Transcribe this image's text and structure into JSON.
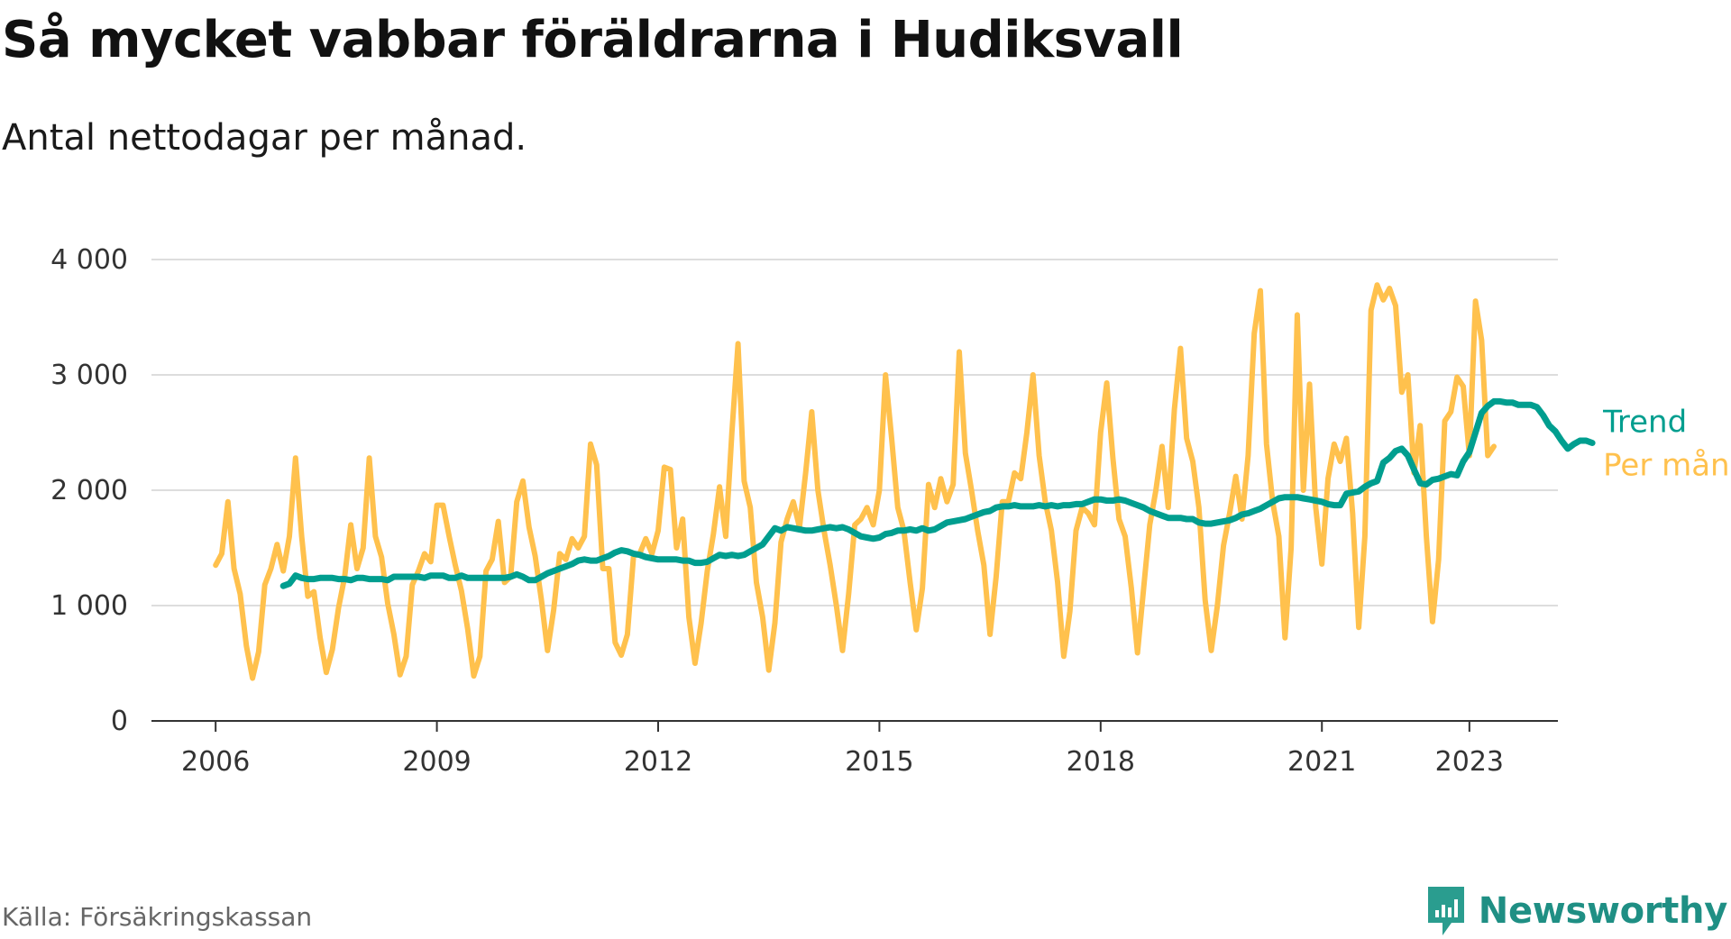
{
  "title": "Så mycket vabbar föräldrarna i Hudiksvall",
  "subtitle": "Antal nettodagar per månad.",
  "source": "Källa: Försäkringskassan",
  "brand": "Newsworthy",
  "colors": {
    "trend": "#009e8f",
    "monthly": "#ffc14d",
    "grid": "#dddddd",
    "axis": "#333333",
    "brand": "#1f8f84"
  },
  "chart_data": {
    "type": "line",
    "x_tick_labels": [
      "2006",
      "2009",
      "2012",
      "2015",
      "2018",
      "2021",
      "2023"
    ],
    "x_tick_years": [
      2006,
      2009,
      2012,
      2015,
      2018,
      2021,
      2023
    ],
    "xlim": [
      2005.13,
      2024.2
    ],
    "y_ticks": [
      0,
      1000,
      2000,
      3000,
      4000
    ],
    "y_tick_labels": [
      "0",
      "1 000",
      "2 000",
      "3 000",
      "4 000"
    ],
    "ylim": [
      0,
      4000
    ],
    "grid": true,
    "legend": "direct labels at right end of lines",
    "series": [
      {
        "name": "Per månad",
        "color": "#ffc14d",
        "x_start": 2006.0,
        "x_step": 0.08333,
        "values": [
          1350,
          1450,
          1900,
          1320,
          1100,
          650,
          370,
          600,
          1180,
          1320,
          1530,
          1300,
          1600,
          2280,
          1600,
          1080,
          1120,
          720,
          420,
          620,
          980,
          1250,
          1700,
          1320,
          1500,
          2280,
          1600,
          1420,
          1020,
          750,
          400,
          560,
          1180,
          1300,
          1450,
          1380,
          1870,
          1870,
          1600,
          1350,
          1130,
          800,
          390,
          560,
          1300,
          1400,
          1730,
          1200,
          1250,
          1900,
          2080,
          1680,
          1430,
          1050,
          610,
          960,
          1450,
          1400,
          1580,
          1500,
          1600,
          2400,
          2220,
          1320,
          1320,
          680,
          570,
          750,
          1430,
          1450,
          1580,
          1450,
          1650,
          2200,
          2180,
          1500,
          1750,
          900,
          500,
          850,
          1300,
          1620,
          2030,
          1600,
          2500,
          3270,
          2080,
          1850,
          1200,
          900,
          440,
          850,
          1550,
          1750,
          1900,
          1680,
          2150,
          2680,
          2000,
          1650,
          1350,
          1000,
          610,
          1100,
          1700,
          1750,
          1850,
          1700,
          2000,
          3000,
          2450,
          1850,
          1650,
          1200,
          790,
          1150,
          2050,
          1850,
          2100,
          1900,
          2050,
          3200,
          2320,
          2000,
          1650,
          1350,
          750,
          1250,
          1900,
          1900,
          2150,
          2100,
          2500,
          3000,
          2300,
          1900,
          1650,
          1200,
          560,
          950,
          1650,
          1850,
          1800,
          1700,
          2500,
          2930,
          2280,
          1750,
          1600,
          1150,
          590,
          1150,
          1700,
          2000,
          2380,
          1850,
          2700,
          3230,
          2450,
          2250,
          1850,
          1050,
          610,
          1000,
          1520,
          1800,
          2120,
          1750,
          2300,
          3360,
          3730,
          2400,
          1900,
          1600,
          720,
          1500,
          3520,
          2000,
          2920,
          1850,
          1360,
          2100,
          2400,
          2250,
          2450,
          1800,
          810,
          1600,
          3560,
          3780,
          3650,
          3750,
          3600,
          2850,
          3000,
          2150,
          2560,
          1600,
          860,
          1400,
          2600,
          2680,
          2980,
          2900,
          2300,
          3640,
          3300,
          2300,
          2380
        ]
      },
      {
        "name": "Trend",
        "color": "#009e8f",
        "x_start": 2006.9167,
        "x_step": 0.08333,
        "values": [
          1170,
          1190,
          1260,
          1240,
          1230,
          1230,
          1240,
          1240,
          1240,
          1230,
          1230,
          1220,
          1240,
          1240,
          1230,
          1230,
          1230,
          1220,
          1250,
          1250,
          1250,
          1250,
          1250,
          1240,
          1260,
          1260,
          1260,
          1240,
          1240,
          1260,
          1240,
          1240,
          1240,
          1240,
          1240,
          1240,
          1240,
          1250,
          1270,
          1250,
          1220,
          1220,
          1250,
          1280,
          1300,
          1320,
          1340,
          1360,
          1390,
          1400,
          1390,
          1390,
          1410,
          1430,
          1460,
          1480,
          1470,
          1450,
          1440,
          1420,
          1410,
          1400,
          1400,
          1400,
          1400,
          1390,
          1390,
          1370,
          1370,
          1380,
          1410,
          1440,
          1430,
          1440,
          1430,
          1440,
          1470,
          1500,
          1530,
          1600,
          1670,
          1650,
          1680,
          1670,
          1660,
          1650,
          1650,
          1660,
          1670,
          1680,
          1670,
          1680,
          1660,
          1630,
          1600,
          1590,
          1580,
          1590,
          1620,
          1630,
          1650,
          1650,
          1660,
          1650,
          1670,
          1650,
          1660,
          1690,
          1720,
          1730,
          1740,
          1750,
          1770,
          1790,
          1810,
          1820,
          1850,
          1860,
          1860,
          1870,
          1860,
          1860,
          1860,
          1870,
          1860,
          1870,
          1860,
          1870,
          1870,
          1880,
          1880,
          1900,
          1920,
          1920,
          1910,
          1910,
          1920,
          1910,
          1890,
          1870,
          1850,
          1820,
          1800,
          1780,
          1760,
          1760,
          1760,
          1750,
          1750,
          1720,
          1710,
          1710,
          1720,
          1730,
          1740,
          1760,
          1790,
          1800,
          1820,
          1840,
          1870,
          1900,
          1930,
          1940,
          1940,
          1940,
          1930,
          1920,
          1910,
          1900,
          1880,
          1870,
          1870,
          1970,
          1980,
          1990,
          2030,
          2060,
          2080,
          2240,
          2280,
          2340,
          2360,
          2300,
          2180,
          2060,
          2050,
          2090,
          2100,
          2120,
          2140,
          2130,
          2250,
          2330,
          2500,
          2670,
          2730,
          2770,
          2770,
          2760,
          2760,
          2740,
          2740,
          2740,
          2720,
          2650,
          2560,
          2510,
          2430,
          2360,
          2400,
          2430,
          2430,
          2410
        ]
      }
    ]
  }
}
